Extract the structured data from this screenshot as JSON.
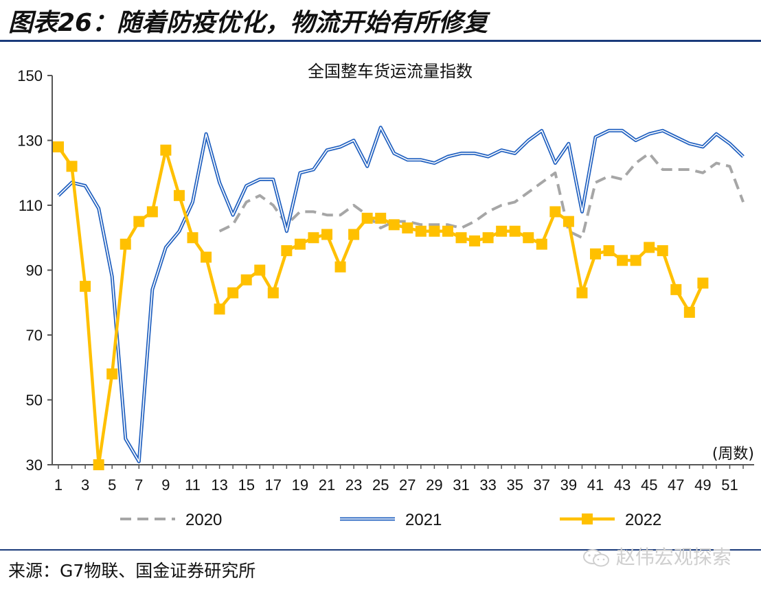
{
  "figure_title": "图表26：随着防疫优化，物流开始有所修复",
  "source": "来源：G7物联、国金证券研究所",
  "watermark": "赵伟宏观探索",
  "chart_data": {
    "type": "line",
    "title": "全国整车货运流量指数",
    "xlabel": "(周数)",
    "ylabel": "",
    "ylim": [
      30,
      150
    ],
    "yticks": [
      30,
      50,
      70,
      90,
      110,
      130,
      150
    ],
    "xlim": [
      1,
      52
    ],
    "xtick_labels": [
      "1",
      "3",
      "5",
      "7",
      "9",
      "11",
      "13",
      "15",
      "17",
      "19",
      "21",
      "23",
      "25",
      "27",
      "29",
      "31",
      "33",
      "35",
      "37",
      "39",
      "41",
      "43",
      "45",
      "47",
      "49",
      "51"
    ],
    "legend_position": "bottom",
    "grid": false,
    "series": [
      {
        "name": "2020",
        "color": "#a6a6a6",
        "style": "dashed",
        "marker": "none",
        "x": [
          13,
          14,
          15,
          16,
          17,
          18,
          19,
          20,
          21,
          22,
          23,
          24,
          25,
          26,
          27,
          28,
          29,
          30,
          31,
          32,
          33,
          34,
          35,
          36,
          37,
          38,
          39,
          40,
          41,
          42,
          43,
          44,
          45,
          46,
          47,
          48,
          49,
          50,
          51,
          52
        ],
        "values": [
          102,
          104,
          111,
          113,
          110,
          104,
          108,
          108,
          107,
          107,
          110,
          107,
          103,
          105,
          105,
          104,
          104,
          104,
          103,
          105,
          108,
          110,
          111,
          114,
          117,
          120,
          102,
          100,
          117,
          119,
          118,
          123,
          126,
          121,
          121,
          121,
          120,
          123,
          122,
          111
        ]
      },
      {
        "name": "2021",
        "color": "#1f5fbf",
        "style": "double-line",
        "marker": "none",
        "x": [
          1,
          2,
          3,
          4,
          5,
          6,
          7,
          8,
          9,
          10,
          11,
          12,
          13,
          14,
          15,
          16,
          17,
          18,
          19,
          20,
          21,
          22,
          23,
          24,
          25,
          26,
          27,
          28,
          29,
          30,
          31,
          32,
          33,
          34,
          35,
          36,
          37,
          38,
          39,
          40,
          41,
          42,
          43,
          44,
          45,
          46,
          47,
          48,
          49,
          50,
          51,
          52
        ],
        "values": [
          113,
          117,
          116,
          109,
          88,
          38,
          31,
          84,
          97,
          102,
          111,
          132,
          117,
          107,
          116,
          118,
          118,
          102,
          120,
          121,
          127,
          128,
          130,
          122,
          134,
          126,
          124,
          124,
          123,
          125,
          126,
          126,
          125,
          127,
          126,
          130,
          133,
          123,
          129,
          108,
          131,
          133,
          133,
          130,
          132,
          133,
          131,
          129,
          128,
          132,
          129,
          125
        ]
      },
      {
        "name": "2022",
        "color": "#ffc000",
        "style": "solid",
        "marker": "square",
        "x": [
          1,
          2,
          3,
          4,
          5,
          6,
          7,
          8,
          9,
          10,
          11,
          12,
          13,
          14,
          15,
          16,
          17,
          18,
          19,
          20,
          21,
          22,
          23,
          24,
          25,
          26,
          27,
          28,
          29,
          30,
          31,
          32,
          33,
          34,
          35,
          36,
          37,
          38,
          39,
          40,
          41,
          42,
          43,
          44,
          45,
          46,
          47,
          48,
          49
        ],
        "values": [
          128,
          122,
          85,
          30,
          58,
          98,
          105,
          108,
          127,
          113,
          100,
          94,
          78,
          83,
          87,
          90,
          83,
          96,
          98,
          100,
          101,
          91,
          101,
          106,
          106,
          104,
          103,
          102,
          102,
          102,
          100,
          99,
          100,
          102,
          102,
          100,
          98,
          108,
          105,
          83,
          95,
          96,
          93,
          93,
          97,
          96,
          84,
          77,
          86
        ]
      }
    ]
  }
}
